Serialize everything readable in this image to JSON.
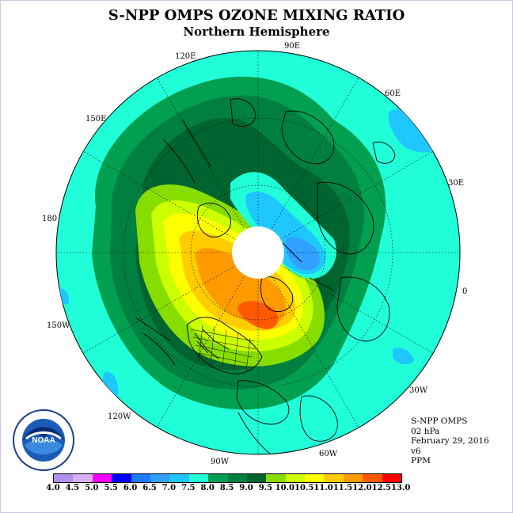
{
  "title": "S-NPP OMPS OZONE MIXING RATIO",
  "subtitle": "Northern Hemisphere",
  "longitude_labels": [
    "90E",
    "60E",
    "30E",
    "0",
    "30W",
    "60W",
    "90W",
    "120W",
    "150W",
    "180",
    "150E",
    "120E"
  ],
  "info": {
    "product": "S-NPP OMPS",
    "level": "02 hPa",
    "date": "February 29, 2016",
    "version": "v6",
    "units": "PPM"
  },
  "logo_text": "NOAA",
  "colorbar": {
    "ticks": [
      "4.0",
      "4.5",
      "5.0",
      "5.5",
      "6.0",
      "6.5",
      "7.0",
      "7.5",
      "8.0",
      "8.5",
      "9.0",
      "9.5",
      "10.0",
      "10.5",
      "11.0",
      "11.5",
      "12.0",
      "12.5",
      "13.0"
    ],
    "colors": [
      "#b090f0",
      "#d8b0f8",
      "#ff00ff",
      "#0000ff",
      "#1e78ff",
      "#32a0ff",
      "#1ec8ff",
      "#20ffd8",
      "#00a050",
      "#008040",
      "#006430",
      "#88dd00",
      "#ccff00",
      "#ffff00",
      "#ffcc00",
      "#ff9a00",
      "#ff5a00",
      "#ff0000",
      "#8b5a2b"
    ]
  },
  "map_colors": {
    "ocean_background": "#20ffd8",
    "level_8_0": "#00a050",
    "level_8_5": "#008040",
    "level_9_0": "#006430",
    "level_9_5": "#88dd00",
    "level_10_0": "#ccff00",
    "level_10_5": "#ffff00",
    "level_11_0": "#ffcc00",
    "level_11_5": "#ff9a00",
    "level_12_0": "#ff5a00",
    "low_7_0": "#1ec8ff",
    "low_6_5": "#32a0ff",
    "pole_mask": "#ffffff"
  }
}
